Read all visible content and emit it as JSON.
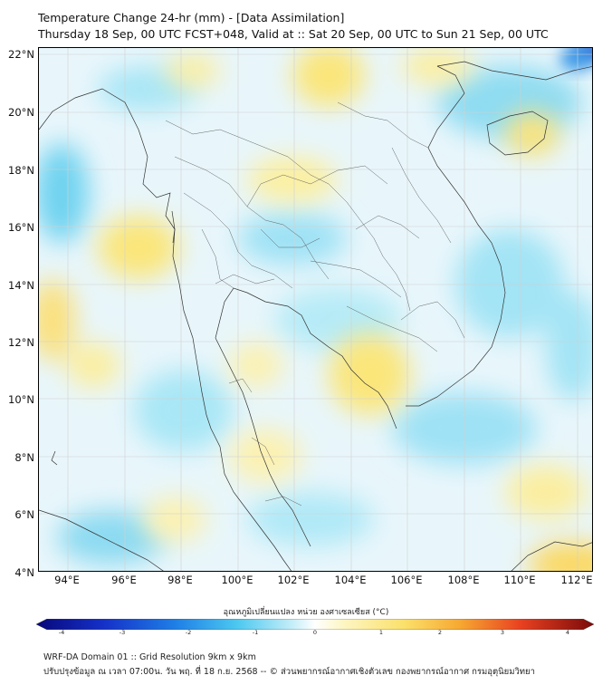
{
  "title_line1": "Temperature Change 24-hr (mm) - [Data Assimilation]",
  "title_line2": "Thursday 18 Sep, 00 UTC FCST+048, Valid at :: Sat 20 Sep, 00 UTC to Sun 21 Sep, 00 UTC",
  "y_ticks": [
    "22°N",
    "20°N",
    "18°N",
    "16°N",
    "14°N",
    "12°N",
    "10°N",
    "8°N",
    "6°N",
    "4°N"
  ],
  "x_ticks": [
    "94°E",
    "96°E",
    "98°E",
    "100°E",
    "102°E",
    "104°E",
    "106°E",
    "108°E",
    "110°E",
    "112°E"
  ],
  "colorbar": {
    "title": "อุณหภูมิเปลี่ยนแปลง หน่วย องศาเซลเซียส (°C)",
    "ticks": [
      "-4",
      "-3",
      "-2",
      "-1",
      "0",
      "1",
      "2",
      "3",
      "4"
    ],
    "range": [
      -4,
      4
    ]
  },
  "footer_line1": "WRF-DA Domain 01 :: Grid Resolution 9km x 9km",
  "footer_line2": "ปรับปรุงข้อมูล ณ เวลา 07:00น. วัน พฤ. ที่ 18 ก.ย. 2568 -- © ส่วนพยากรณ์อากาศเชิงตัวเลข กองพยากรณ์อากาศ กรมอุตุนิยมวิทยา",
  "colors": {
    "ocean_base": "#e6f6fb",
    "light_blue": "#8fdcf2",
    "yellow": "#fbe67a",
    "dark_blue": "#1f3fcf",
    "border": "#333333"
  }
}
